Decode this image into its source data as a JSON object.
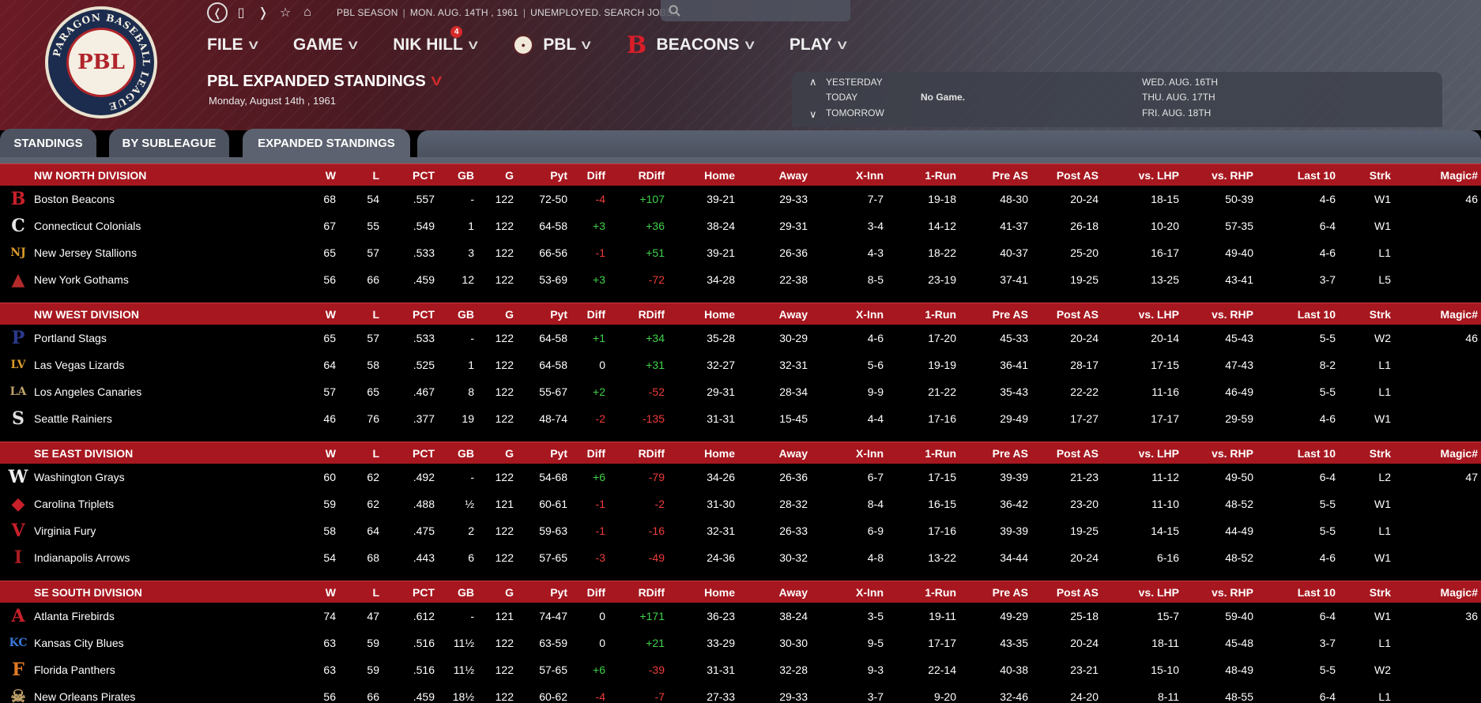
{
  "logo": {
    "ring_text": "PARAGON BASEBALL LEAGUE",
    "center_text": "PBL"
  },
  "topbar": {
    "season": "PBL SEASON",
    "date": "MON. AUG. 14TH , 1961",
    "status": "UNEMPLOYED. SEARCH JOBS...",
    "search_placeholder": ""
  },
  "menu": {
    "file": "FILE",
    "game": "GAME",
    "manager": "NIK HILL",
    "manager_badge": "4",
    "league": "PBL",
    "team": "BEACONS",
    "play": "PLAY"
  },
  "page": {
    "title": "PBL EXPANDED STANDINGS",
    "date": "Monday, August 14th , 1961"
  },
  "calendar": {
    "yesterday": "YESTERDAY",
    "today": "TODAY",
    "tomorrow": "TOMORROW",
    "today_note": "No Game.",
    "upcoming": [
      "WED. AUG. 16TH",
      "THU. AUG. 17TH",
      "FRI. AUG. 18TH"
    ]
  },
  "tabs": [
    "STANDINGS",
    "BY SUBLEAGUE",
    "EXPANDED STANDINGS"
  ],
  "columns": [
    "W",
    "L",
    "PCT",
    "GB",
    "G",
    "Pyt",
    "Diff",
    "RDiff",
    "Home",
    "Away",
    "X-Inn",
    "1-Run",
    "Pre AS",
    "Post AS",
    "vs. LHP",
    "vs. RHP",
    "Last 10",
    "Strk",
    "Magic#"
  ],
  "divisions": [
    {
      "name": "NW NORTH DIVISION",
      "teams": [
        {
          "logo": "B",
          "logo_color": "#c8202a",
          "name": "Boston Beacons",
          "w": "68",
          "l": "54",
          "pct": ".557",
          "gb": "-",
          "g": "122",
          "pyt": "72-50",
          "diff": "-4",
          "rdiff": "+107",
          "home": "39-21",
          "away": "29-33",
          "xinn": "7-7",
          "onerun": "19-18",
          "pre": "48-30",
          "post": "20-24",
          "lhp": "18-15",
          "rhp": "50-39",
          "last10": "4-6",
          "strk": "W1",
          "magic": "46"
        },
        {
          "logo": "C",
          "logo_color": "#e6e6e6",
          "name": "Connecticut Colonials",
          "w": "67",
          "l": "55",
          "pct": ".549",
          "gb": "1",
          "g": "122",
          "pyt": "64-58",
          "diff": "+3",
          "rdiff": "+36",
          "home": "38-24",
          "away": "29-31",
          "xinn": "3-4",
          "onerun": "14-12",
          "pre": "41-37",
          "post": "26-18",
          "lhp": "10-20",
          "rhp": "57-35",
          "last10": "6-4",
          "strk": "W1",
          "magic": ""
        },
        {
          "logo": "NJ",
          "logo_color": "#d99a2b",
          "name": "New Jersey Stallions",
          "w": "65",
          "l": "57",
          "pct": ".533",
          "gb": "3",
          "g": "122",
          "pyt": "66-56",
          "diff": "-1",
          "rdiff": "+51",
          "home": "39-21",
          "away": "26-36",
          "xinn": "4-3",
          "onerun": "18-22",
          "pre": "40-37",
          "post": "25-20",
          "lhp": "16-17",
          "rhp": "49-40",
          "last10": "4-6",
          "strk": "L1",
          "magic": ""
        },
        {
          "logo": "▲",
          "logo_color": "#b22a2a",
          "name": "New York Gothams",
          "w": "56",
          "l": "66",
          "pct": ".459",
          "gb": "12",
          "g": "122",
          "pyt": "53-69",
          "diff": "+3",
          "rdiff": "-72",
          "home": "34-28",
          "away": "22-38",
          "xinn": "8-5",
          "onerun": "23-19",
          "pre": "37-41",
          "post": "19-25",
          "lhp": "13-25",
          "rhp": "43-41",
          "last10": "3-7",
          "strk": "L5",
          "magic": ""
        }
      ]
    },
    {
      "name": "NW WEST DIVISION",
      "teams": [
        {
          "logo": "P",
          "logo_color": "#2b3a8c",
          "name": "Portland Stags",
          "w": "65",
          "l": "57",
          "pct": ".533",
          "gb": "-",
          "g": "122",
          "pyt": "64-58",
          "diff": "+1",
          "rdiff": "+34",
          "home": "35-28",
          "away": "30-29",
          "xinn": "4-6",
          "onerun": "17-20",
          "pre": "45-33",
          "post": "20-24",
          "lhp": "20-14",
          "rhp": "45-43",
          "last10": "5-5",
          "strk": "W2",
          "magic": "46"
        },
        {
          "logo": "LV",
          "logo_color": "#d99a2b",
          "name": "Las Vegas Lizards",
          "w": "64",
          "l": "58",
          "pct": ".525",
          "gb": "1",
          "g": "122",
          "pyt": "64-58",
          "diff": "0",
          "rdiff": "+31",
          "home": "32-27",
          "away": "32-31",
          "xinn": "5-6",
          "onerun": "19-19",
          "pre": "36-41",
          "post": "28-17",
          "lhp": "17-15",
          "rhp": "47-43",
          "last10": "8-2",
          "strk": "L1",
          "magic": ""
        },
        {
          "logo": "LA",
          "logo_color": "#c2a36b",
          "name": "Los Angeles Canaries",
          "w": "57",
          "l": "65",
          "pct": ".467",
          "gb": "8",
          "g": "122",
          "pyt": "55-67",
          "diff": "+2",
          "rdiff": "-52",
          "home": "29-31",
          "away": "28-34",
          "xinn": "9-9",
          "onerun": "21-22",
          "pre": "35-43",
          "post": "22-22",
          "lhp": "11-16",
          "rhp": "46-49",
          "last10": "5-5",
          "strk": "L1",
          "magic": ""
        },
        {
          "logo": "S",
          "logo_color": "#e0e0e0",
          "name": "Seattle Rainiers",
          "w": "46",
          "l": "76",
          "pct": ".377",
          "gb": "19",
          "g": "122",
          "pyt": "48-74",
          "diff": "-2",
          "rdiff": "-135",
          "home": "31-31",
          "away": "15-45",
          "xinn": "4-4",
          "onerun": "17-16",
          "pre": "29-49",
          "post": "17-27",
          "lhp": "17-17",
          "rhp": "29-59",
          "last10": "4-6",
          "strk": "W1",
          "magic": ""
        }
      ]
    },
    {
      "name": "SE EAST DIVISION",
      "teams": [
        {
          "logo": "W",
          "logo_color": "#f0f0f0",
          "name": "Washington Grays",
          "w": "60",
          "l": "62",
          "pct": ".492",
          "gb": "-",
          "g": "122",
          "pyt": "54-68",
          "diff": "+6",
          "rdiff": "-79",
          "home": "34-26",
          "away": "26-36",
          "xinn": "6-7",
          "onerun": "17-15",
          "pre": "39-39",
          "post": "21-23",
          "lhp": "11-12",
          "rhp": "49-50",
          "last10": "6-4",
          "strk": "L2",
          "magic": "47"
        },
        {
          "logo": "◆",
          "logo_color": "#c8202a",
          "name": "Carolina Triplets",
          "w": "59",
          "l": "62",
          "pct": ".488",
          "gb": "½",
          "g": "121",
          "pyt": "60-61",
          "diff": "-1",
          "rdiff": "-2",
          "home": "31-30",
          "away": "28-32",
          "xinn": "8-4",
          "onerun": "16-15",
          "pre": "36-42",
          "post": "23-20",
          "lhp": "11-10",
          "rhp": "48-52",
          "last10": "5-5",
          "strk": "W1",
          "magic": ""
        },
        {
          "logo": "V",
          "logo_color": "#c8202a",
          "name": "Virginia Fury",
          "w": "58",
          "l": "64",
          "pct": ".475",
          "gb": "2",
          "g": "122",
          "pyt": "59-63",
          "diff": "-1",
          "rdiff": "-16",
          "home": "32-31",
          "away": "26-33",
          "xinn": "6-9",
          "onerun": "17-16",
          "pre": "39-39",
          "post": "19-25",
          "lhp": "14-15",
          "rhp": "44-49",
          "last10": "5-5",
          "strk": "L1",
          "magic": ""
        },
        {
          "logo": "I",
          "logo_color": "#a81c22",
          "name": "Indianapolis Arrows",
          "w": "54",
          "l": "68",
          "pct": ".443",
          "gb": "6",
          "g": "122",
          "pyt": "57-65",
          "diff": "-3",
          "rdiff": "-49",
          "home": "24-36",
          "away": "30-32",
          "xinn": "4-8",
          "onerun": "13-22",
          "pre": "34-44",
          "post": "20-24",
          "lhp": "6-16",
          "rhp": "48-52",
          "last10": "4-6",
          "strk": "W1",
          "magic": ""
        }
      ]
    },
    {
      "name": "SE SOUTH DIVISION",
      "teams": [
        {
          "logo": "A",
          "logo_color": "#c8202a",
          "name": "Atlanta Firebirds",
          "w": "74",
          "l": "47",
          "pct": ".612",
          "gb": "-",
          "g": "121",
          "pyt": "74-47",
          "diff": "0",
          "rdiff": "+171",
          "home": "36-23",
          "away": "38-24",
          "xinn": "3-5",
          "onerun": "19-11",
          "pre": "49-29",
          "post": "25-18",
          "lhp": "15-7",
          "rhp": "59-40",
          "last10": "6-4",
          "strk": "W1",
          "magic": "36"
        },
        {
          "logo": "KC",
          "logo_color": "#3a78d8",
          "name": "Kansas City Blues",
          "w": "63",
          "l": "59",
          "pct": ".516",
          "gb": "11½",
          "g": "122",
          "pyt": "63-59",
          "diff": "0",
          "rdiff": "+21",
          "home": "33-29",
          "away": "30-30",
          "xinn": "9-5",
          "onerun": "17-17",
          "pre": "43-35",
          "post": "20-24",
          "lhp": "18-11",
          "rhp": "45-48",
          "last10": "3-7",
          "strk": "L1",
          "magic": ""
        },
        {
          "logo": "F",
          "logo_color": "#e07a26",
          "name": "Florida Panthers",
          "w": "63",
          "l": "59",
          "pct": ".516",
          "gb": "11½",
          "g": "122",
          "pyt": "57-65",
          "diff": "+6",
          "rdiff": "-39",
          "home": "31-31",
          "away": "32-28",
          "xinn": "9-3",
          "onerun": "22-14",
          "pre": "40-38",
          "post": "23-21",
          "lhp": "15-10",
          "rhp": "48-49",
          "last10": "5-5",
          "strk": "W2",
          "magic": ""
        },
        {
          "logo": "☠",
          "logo_color": "#c2a36b",
          "name": "New Orleans Pirates",
          "w": "56",
          "l": "66",
          "pct": ".459",
          "gb": "18½",
          "g": "122",
          "pyt": "60-62",
          "diff": "-4",
          "rdiff": "-7",
          "home": "27-33",
          "away": "29-33",
          "xinn": "3-7",
          "onerun": "9-20",
          "pre": "32-46",
          "post": "24-20",
          "lhp": "8-11",
          "rhp": "48-55",
          "last10": "6-4",
          "strk": "L1",
          "magic": ""
        }
      ]
    }
  ],
  "colors": {
    "header_red": "#a7171f",
    "positive": "#3fd24a",
    "negative": "#ef3b3b"
  }
}
